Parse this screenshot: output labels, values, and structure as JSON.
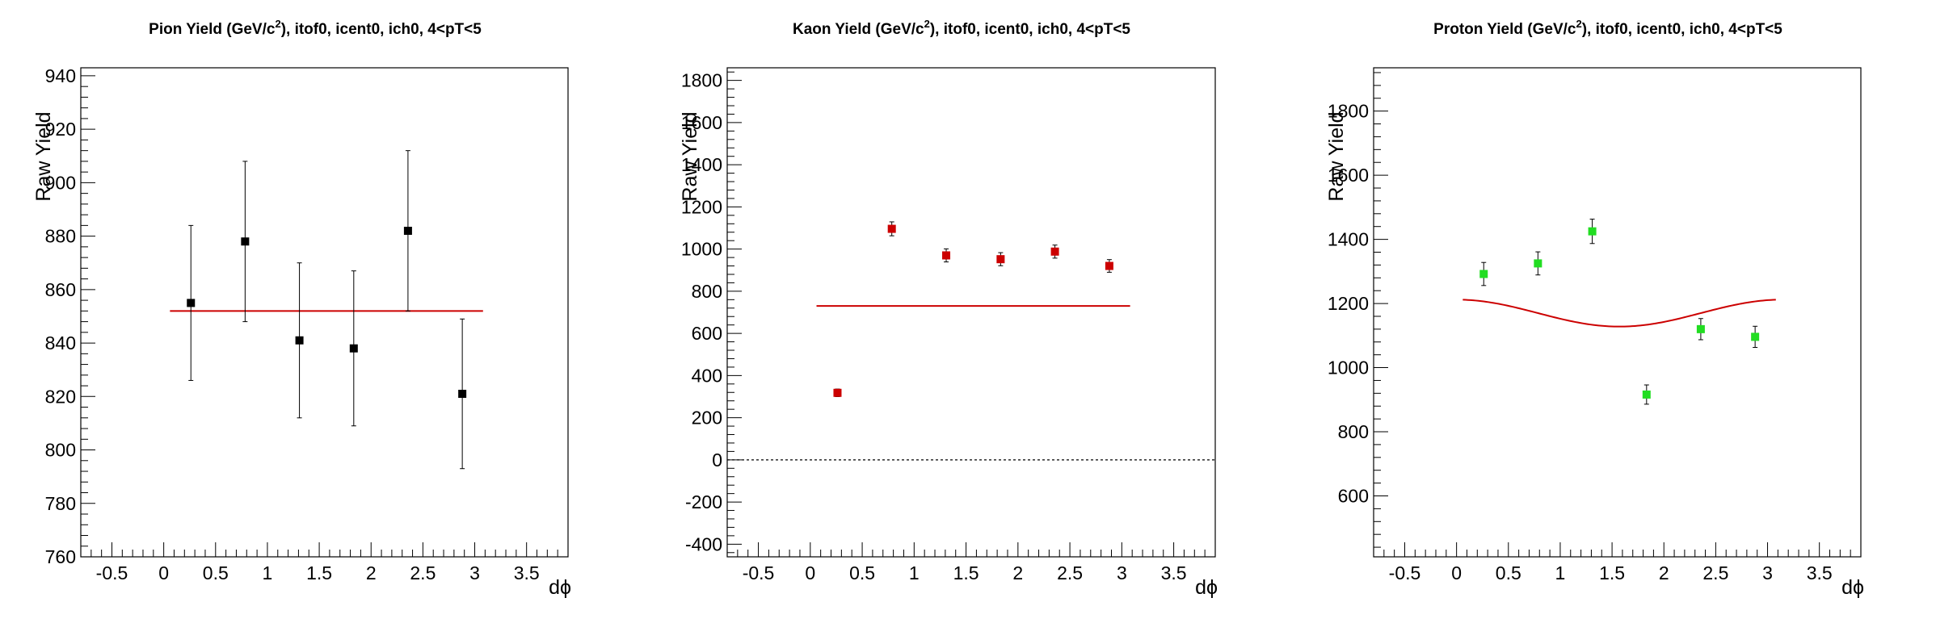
{
  "chart_data": [
    {
      "type": "scatter",
      "title": "Pion Yield (GeV/c²), itof0, icent0, ich0, 4<pT<5",
      "title_parts": [
        "Pion Yield (GeV/c",
        "2",
        "), itof0, icent0, ich0, 4<pT<5"
      ],
      "xlabel": "dϕ",
      "ylabel": "Raw Yield",
      "xlim": [
        -0.8,
        3.9
      ],
      "ylim": [
        760,
        943
      ],
      "xticks": [
        -0.5,
        0,
        0.5,
        1,
        1.5,
        2,
        2.5,
        3,
        3.5
      ],
      "xtick_labels": [
        "-0.5",
        "0",
        "0.5",
        "1",
        "1.5",
        "2",
        "2.5",
        "3",
        "3.5"
      ],
      "yticks": [
        760,
        780,
        800,
        820,
        840,
        860,
        880,
        900,
        920,
        940
      ],
      "ytick_labels": [
        "760",
        "780",
        "800",
        "820",
        "840",
        "860",
        "880",
        "900",
        "920",
        "940"
      ],
      "marker_color": "#000000",
      "fit_color": "#cc0000",
      "series": [
        {
          "x": [
            0.262,
            0.785,
            1.309,
            1.833,
            2.356,
            2.88
          ],
          "y": [
            855,
            878,
            841,
            838,
            882,
            821
          ],
          "yerr": [
            29,
            30,
            29,
            29,
            30,
            28
          ]
        }
      ],
      "fit": {
        "kind": "constant",
        "x_range": [
          0.06,
          3.08
        ],
        "value": 852
      },
      "zero_line": false,
      "grid": false
    },
    {
      "type": "scatter",
      "title": "Kaon Yield (GeV/c²), itof0, icent0, ich0, 4<pT<5",
      "title_parts": [
        "Kaon Yield (GeV/c",
        "2",
        "), itof0, icent0, ich0, 4<pT<5"
      ],
      "xlabel": "dϕ",
      "ylabel": "Raw Yield",
      "xlim": [
        -0.8,
        3.9
      ],
      "ylim": [
        -460,
        1860
      ],
      "xticks": [
        -0.5,
        0,
        0.5,
        1,
        1.5,
        2,
        2.5,
        3,
        3.5
      ],
      "xtick_labels": [
        "-0.5",
        "0",
        "0.5",
        "1",
        "1.5",
        "2",
        "2.5",
        "3",
        "3.5"
      ],
      "yticks": [
        -400,
        -200,
        0,
        200,
        400,
        600,
        800,
        1000,
        1200,
        1400,
        1600,
        1800
      ],
      "ytick_labels": [
        "-400",
        "-200",
        "0",
        "200",
        "400",
        "600",
        "800",
        "1000",
        "1200",
        "1400",
        "1600",
        "1800"
      ],
      "marker_color": "#cc0000",
      "fit_color": "#cc0000",
      "series": [
        {
          "x": [
            0.262,
            0.785,
            1.309,
            1.833,
            2.356,
            2.88
          ],
          "y": [
            318,
            1096,
            970,
            952,
            988,
            920
          ],
          "yerr": [
            18,
            33,
            31,
            31,
            31,
            30
          ]
        }
      ],
      "fit": {
        "kind": "constant",
        "x_range": [
          0.06,
          3.08
        ],
        "value": 730
      },
      "zero_line": true,
      "grid": false
    },
    {
      "type": "scatter",
      "title": "Proton Yield (GeV/c²), itof0, icent0, ich0, 4<pT<5",
      "title_parts": [
        "Proton Yield (GeV/c",
        "2",
        "), itof0, icent0, ich0, 4<pT<5"
      ],
      "xlabel": "dϕ",
      "ylabel": "Raw Yield",
      "xlim": [
        -0.8,
        3.9
      ],
      "ylim": [
        410,
        1935
      ],
      "xticks": [
        -0.5,
        0,
        0.5,
        1,
        1.5,
        2,
        2.5,
        3,
        3.5
      ],
      "xtick_labels": [
        "-0.5",
        "0",
        "0.5",
        "1",
        "1.5",
        "2",
        "2.5",
        "3",
        "3.5"
      ],
      "yticks": [
        600,
        800,
        1000,
        1200,
        1400,
        1600,
        1800
      ],
      "ytick_labels": [
        "600",
        "800",
        "1000",
        "1200",
        "1400",
        "1600",
        "1800"
      ],
      "marker_color": "#22dd22",
      "fit_color": "#cc0000",
      "series": [
        {
          "x": [
            0.262,
            0.785,
            1.309,
            1.833,
            2.356,
            2.88
          ],
          "y": [
            1292,
            1325,
            1425,
            916,
            1120,
            1096
          ],
          "yerr": [
            36,
            36,
            38,
            30,
            33,
            33
          ]
        }
      ],
      "fit": {
        "kind": "cosine",
        "x_range": [
          0.06,
          3.08
        ],
        "offset": 1170,
        "amplitude": 42,
        "harmonic": 2
      },
      "zero_line": false,
      "grid": false
    }
  ]
}
